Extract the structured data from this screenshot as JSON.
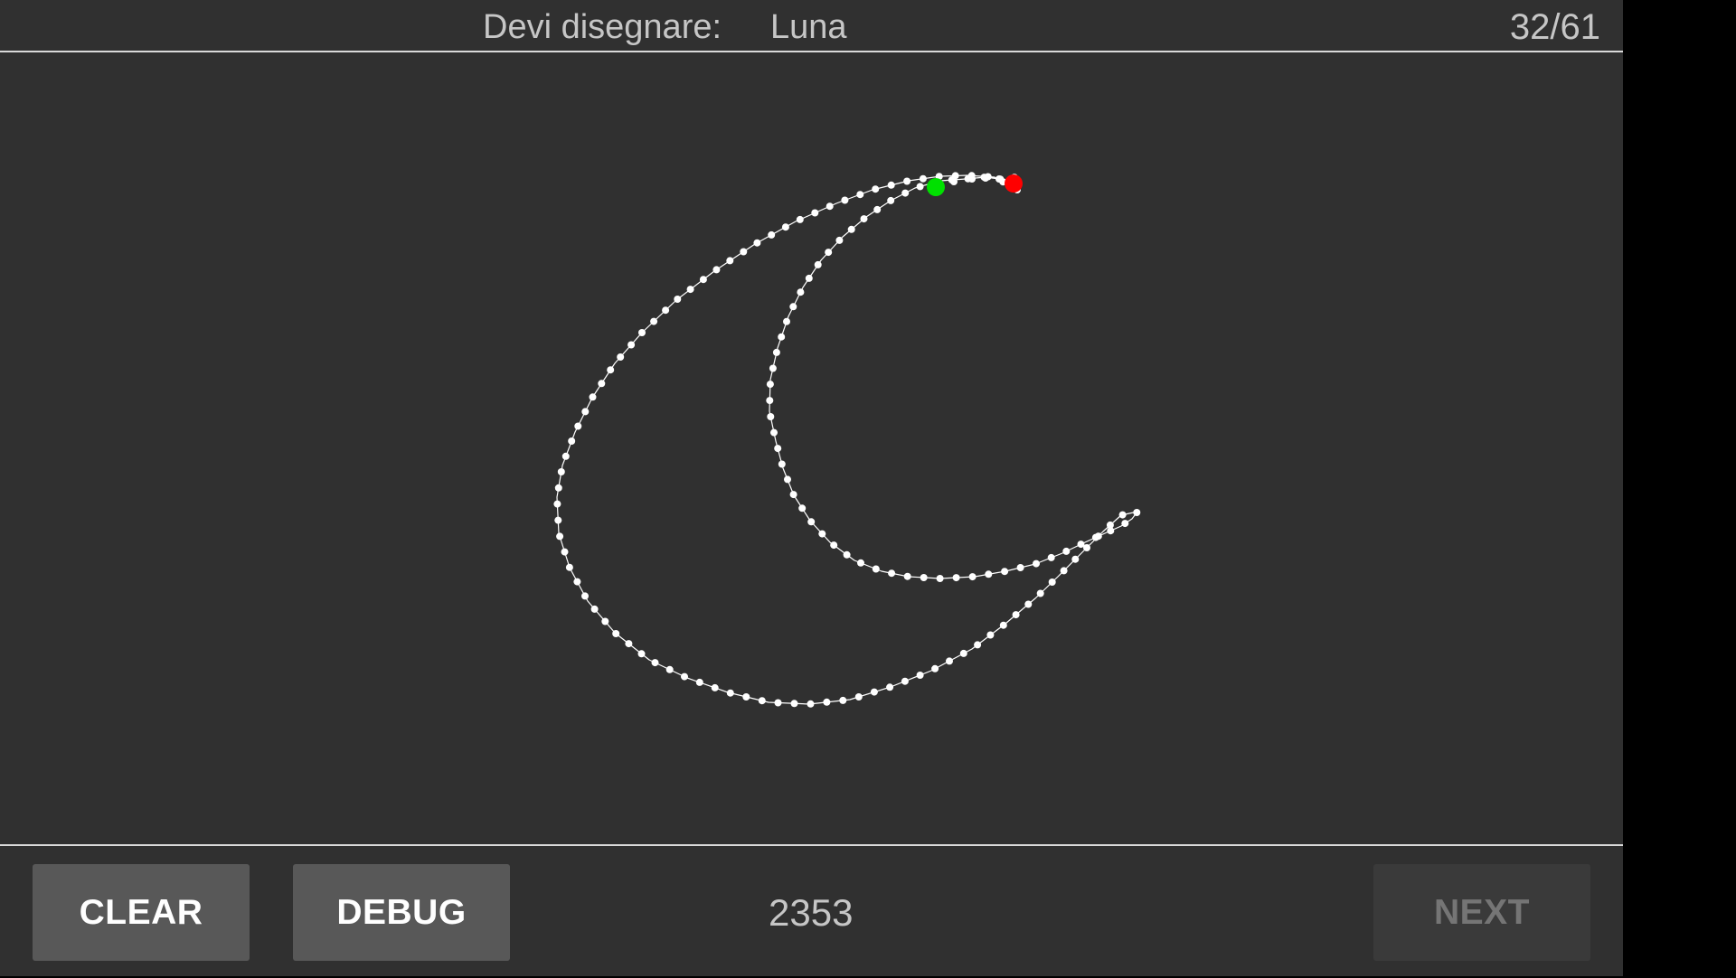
{
  "header": {
    "prompt_label": "Devi disegnare:",
    "prompt_word": "Luna",
    "progress": "32/61"
  },
  "footer": {
    "clear_label": "CLEAR",
    "debug_label": "DEBUG",
    "score": "2353",
    "next_label": "NEXT",
    "next_enabled": false
  },
  "drawing": {
    "stroke_color": "#ffffff",
    "start_marker_color": "#00e000",
    "end_marker_color": "#ff0000"
  }
}
